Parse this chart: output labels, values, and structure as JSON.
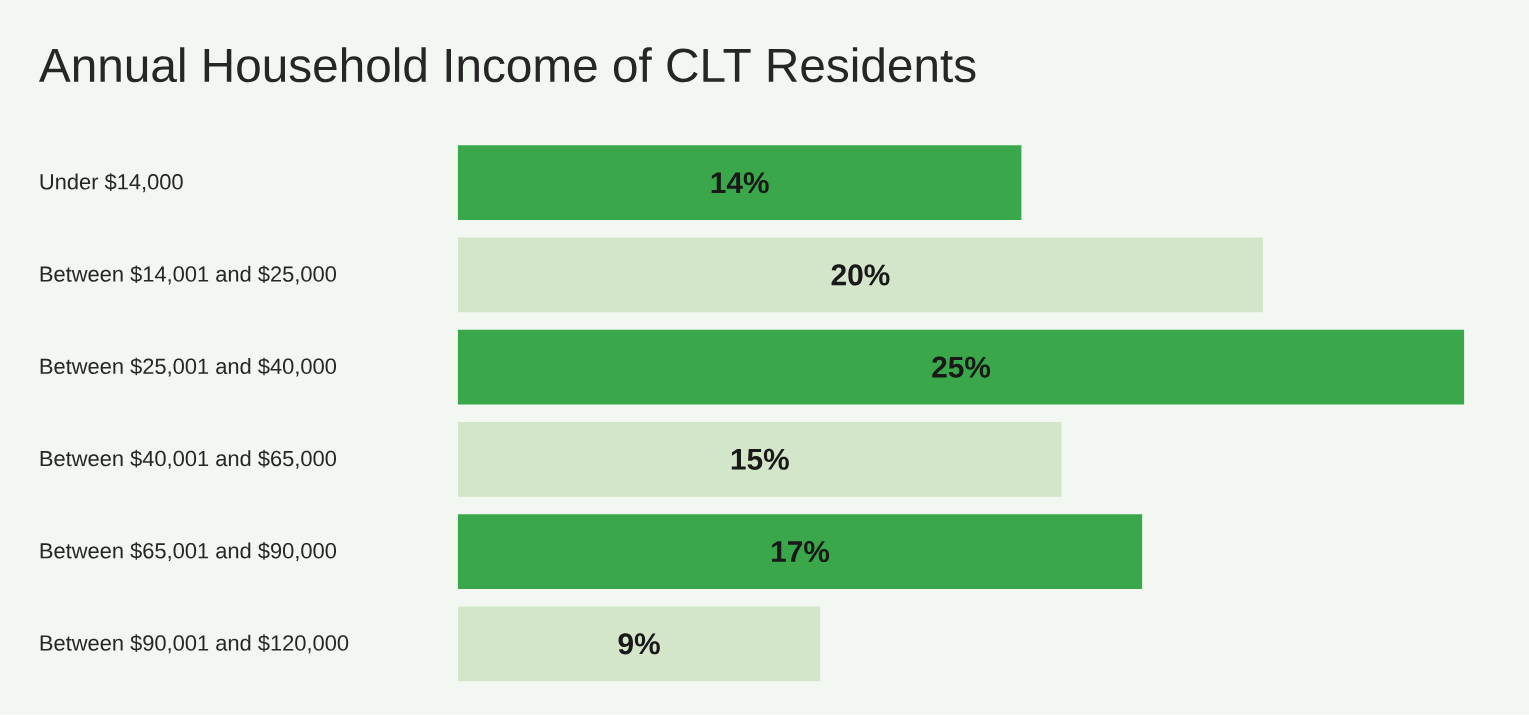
{
  "chart_data": {
    "type": "bar",
    "orientation": "horizontal",
    "title": "Annual Household Income of CLT Residents",
    "categories": [
      "Under $14,000",
      "Between $14,001 and $25,000",
      "Between $25,001 and $40,000",
      "Between $40,001 and $65,000",
      "Between $65,001 and $90,000",
      "Between $90,001 and $120,000"
    ],
    "values": [
      14,
      20,
      25,
      15,
      17,
      9
    ],
    "colors": [
      "#3aa84a",
      "#d4e6ca",
      "#3aa84a",
      "#d4e6ca",
      "#3aa84a",
      "#d4e6ca"
    ],
    "value_labels": [
      "14%",
      "20%",
      "25%",
      "15%",
      "17%",
      "9%"
    ]
  }
}
